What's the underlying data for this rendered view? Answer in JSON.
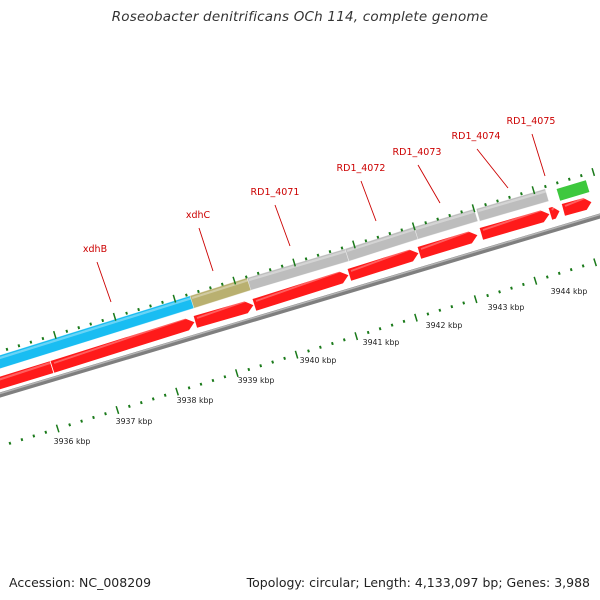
{
  "title": "Roseobacter denitrificans OCh 114, complete genome",
  "footer": {
    "accession": "Accession: NC_008209",
    "summary": "Topology: circular; Length: 4,133,097 bp; Genes: 3,988"
  },
  "colors": {
    "cds_red": "#ff1a1a",
    "gene_gray": "#bdbdbd",
    "gene_blue": "#19bdf2",
    "gene_olive": "#b9b070",
    "gene_green": "#3ec83e",
    "track_gray": "#7f7f7f",
    "tick_green": "#1a7a1a",
    "label_red": "#cc0000"
  },
  "gene_labels": [
    {
      "id": "xdhB",
      "text": "xdhB"
    },
    {
      "id": "xdhC",
      "text": "xdhC"
    },
    {
      "id": "RD1_4071",
      "text": "RD1_4071"
    },
    {
      "id": "RD1_4072",
      "text": "RD1_4072"
    },
    {
      "id": "RD1_4073",
      "text": "RD1_4073"
    },
    {
      "id": "RD1_4074",
      "text": "RD1_4074"
    },
    {
      "id": "RD1_4075",
      "text": "RD1_4075"
    }
  ],
  "scale_labels": [
    "3936 kbp",
    "3937 kbp",
    "3938 kbp",
    "3939 kbp",
    "3940 kbp",
    "3941 kbp",
    "3942 kbp",
    "3943 kbp",
    "3944 kbp"
  ]
}
